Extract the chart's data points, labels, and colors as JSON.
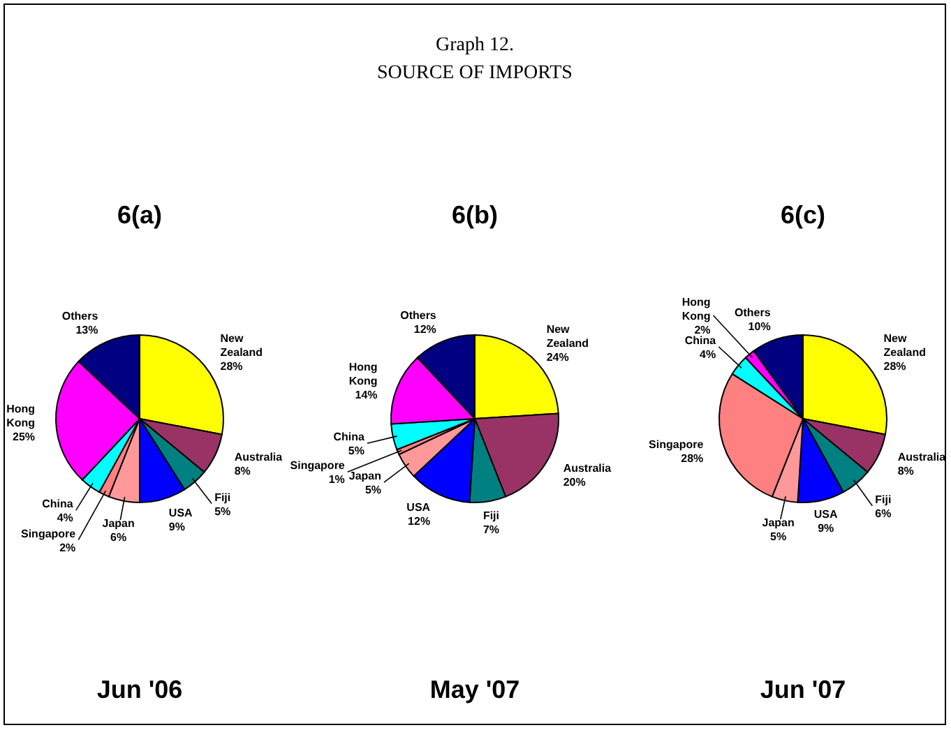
{
  "chart_data": [
    {
      "type": "pie",
      "title": "6(a)",
      "xlabel": "Jun '06",
      "annotations": [
        "Graph 12.",
        "SOURCE OF IMPORTS"
      ],
      "categories": [
        "New Zealand",
        "Australia",
        "Fiji",
        "USA",
        "Japan",
        "Singapore",
        "China",
        "Hong Kong",
        "Others"
      ],
      "values": [
        28,
        8,
        5,
        9,
        6,
        2,
        4,
        25,
        13
      ],
      "value_labels": [
        "28%",
        "8%",
        "5%",
        "9%",
        "6%",
        "2%",
        "4%",
        "25%",
        "13%"
      ],
      "colors": [
        "#ffff00",
        "#993366",
        "#008080",
        "#0000ff",
        "#ff9999",
        "#ff8080",
        "#00ffff",
        "#ff00ff",
        "#000080"
      ]
    },
    {
      "type": "pie",
      "title": "6(b)",
      "xlabel": "May '07",
      "categories": [
        "New Zealand",
        "Australia",
        "Fiji",
        "USA",
        "Japan",
        "Singapore",
        "China",
        "Hong Kong",
        "Others"
      ],
      "values": [
        24,
        20,
        7,
        12,
        5,
        1,
        5,
        14,
        12
      ],
      "value_labels": [
        "24%",
        "20%",
        "7%",
        "12%",
        "5%",
        "1%",
        "5%",
        "14%",
        "12%"
      ],
      "colors": [
        "#ffff00",
        "#993366",
        "#008080",
        "#0000ff",
        "#ff9999",
        "#ff8080",
        "#00ffff",
        "#ff00ff",
        "#000080"
      ]
    },
    {
      "type": "pie",
      "title": "6(c)",
      "xlabel": "Jun '07",
      "categories": [
        "New Zealand",
        "Australia",
        "Fiji",
        "USA",
        "Japan",
        "Singapore",
        "China",
        "Hong Kong",
        "Others"
      ],
      "values": [
        28,
        8,
        6,
        9,
        5,
        28,
        4,
        2,
        10
      ],
      "value_labels": [
        "28%",
        "8%",
        "6%",
        "9%",
        "5%",
        "28%",
        "4%",
        "2%",
        "10%"
      ],
      "colors": [
        "#ffff00",
        "#993366",
        "#008080",
        "#0000ff",
        "#ff9999",
        "#ff8080",
        "#00ffff",
        "#ff00ff",
        "#000080"
      ]
    }
  ]
}
